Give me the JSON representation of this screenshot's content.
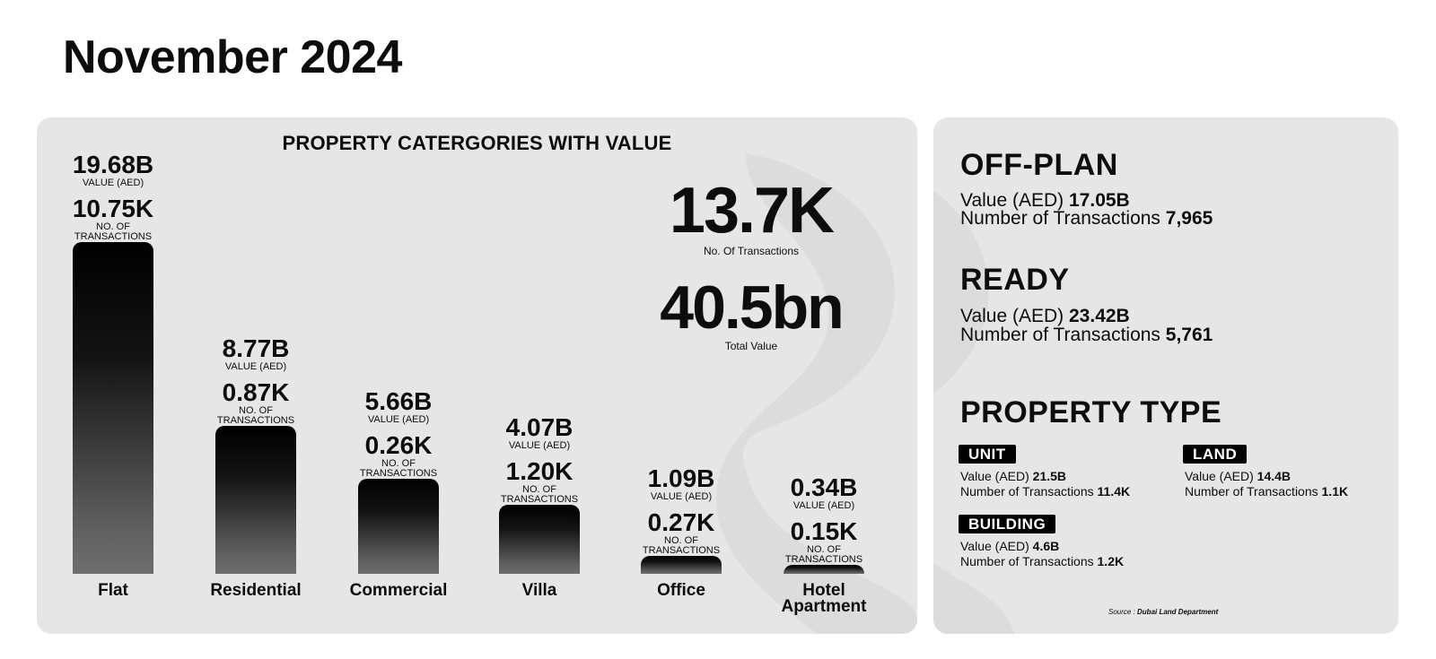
{
  "page": {
    "title": "November 2024"
  },
  "chart_data": {
    "type": "bar",
    "title": "PROPERTY CATERGORIES WITH VALUE",
    "categories": [
      "Flat",
      "Residential",
      "Commercial",
      "Villa",
      "Office",
      "Hotel Apartment"
    ],
    "series": [
      {
        "name": "VALUE (AED)",
        "values": [
          19.68,
          8.77,
          5.66,
          4.07,
          1.09,
          0.34
        ],
        "unit": "B"
      },
      {
        "name": "NO. OF TRANSACTIONS",
        "values": [
          10.75,
          0.87,
          0.26,
          1.2,
          0.27,
          0.15
        ],
        "unit": "K"
      }
    ],
    "value_labels": [
      "19.68B",
      "8.77B",
      "5.66B",
      "4.07B",
      "1.09B",
      "0.34B"
    ],
    "count_labels": [
      "10.75K",
      "0.87K",
      "0.26K",
      "1.20K",
      "0.27K",
      "0.15K"
    ],
    "value_caption": "VALUE (AED)",
    "count_caption_1": "NO. OF",
    "count_caption_2": "TRANSACTIONS",
    "ylim": [
      0,
      19.68
    ],
    "grid": false
  },
  "kpis": {
    "transactions_value": "13.7K",
    "transactions_caption": "No. Of  Transactions",
    "total_value": "40.5bn",
    "total_caption": "Total Value"
  },
  "offplan": {
    "heading": "OFF-PLAN",
    "value_label": "Value (AED)",
    "value": "17.05B",
    "tx_label": "Number of Transactions",
    "tx": "7,965"
  },
  "ready": {
    "heading": "READY",
    "value_label": "Value (AED)",
    "value": "23.42B",
    "tx_label": "Number of Transactions",
    "tx": "5,761"
  },
  "property_type": {
    "heading": "PROPERTY TYPE",
    "items": [
      {
        "label": "UNIT",
        "value_label": "Value (AED)",
        "value": "21.5B",
        "tx_label": "Number of Transactions",
        "tx": "11.4K"
      },
      {
        "label": "LAND",
        "value_label": "Value (AED)",
        "value": "14.4B",
        "tx_label": "Number of Transactions",
        "tx": "1.1K"
      },
      {
        "label": "BUILDING",
        "value_label": "Value (AED)",
        "value": "4.6B",
        "tx_label": "Number of Transactions",
        "tx": "1.2K"
      }
    ]
  },
  "source": {
    "prefix": "Source : ",
    "name": "Dubai Land Department"
  },
  "colors": {
    "panel": "#e6e6e6",
    "bar_top": "#000000",
    "bar_bottom": "#6e6e6e",
    "badge": "#000000"
  }
}
